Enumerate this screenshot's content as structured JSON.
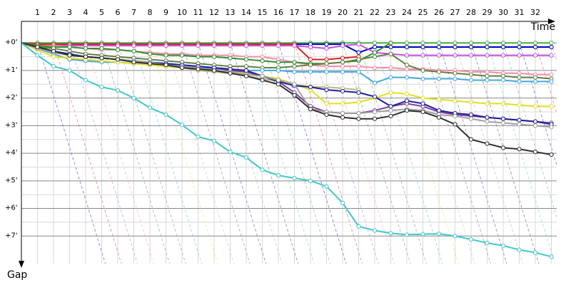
{
  "chart_data": {
    "type": "line",
    "x_label": "Time",
    "y_label": "Gap",
    "categories": [
      null,
      "1",
      "2",
      "3",
      "4",
      "5",
      "6",
      "7",
      "8",
      "9",
      "10",
      "11",
      "12",
      "13",
      "14",
      "15",
      "16",
      "17",
      "18",
      "19",
      "20",
      "21",
      "22",
      "23",
      "24",
      "25",
      "26",
      "27",
      "28",
      "29",
      "30",
      "31",
      "32",
      null
    ],
    "ylim": [
      -0.78,
      8.0
    ],
    "y_inverted": true,
    "yticks": [
      {
        "value": 0,
        "label": "+0'"
      },
      {
        "value": 1,
        "label": "+1'"
      },
      {
        "value": 2,
        "label": "+2'"
      },
      {
        "value": 3,
        "label": "+3'"
      },
      {
        "value": 4,
        "label": "+4'"
      },
      {
        "value": 5,
        "label": "+5'"
      },
      {
        "value": 6,
        "label": "+6'"
      },
      {
        "value": 7,
        "label": "+7'"
      }
    ],
    "grid": true,
    "minor_grid": true,
    "series": [
      {
        "color": "#40b040",
        "values": [
          0,
          0,
          0,
          0,
          0,
          0,
          0,
          0,
          0,
          0,
          0,
          0,
          0,
          0,
          0,
          0,
          0,
          0,
          0,
          0,
          0,
          0,
          0,
          0,
          0,
          0,
          0,
          0,
          0,
          0,
          0,
          0,
          0,
          0
        ]
      },
      {
        "color": "#0000c0",
        "values": [
          0,
          0.05,
          0.05,
          0.05,
          0.05,
          0.05,
          0.05,
          0.05,
          0.05,
          0.05,
          0.05,
          0.05,
          0.05,
          0.05,
          0.05,
          0.05,
          0.05,
          0.05,
          0.05,
          0.05,
          0.05,
          0.35,
          0.15,
          0.15,
          0.15,
          0.15,
          0.15,
          0.15,
          0.15,
          0.15,
          0.15,
          0.15,
          0.15,
          0.15
        ]
      },
      {
        "color": "#e02020",
        "values": [
          0,
          0.05,
          0.05,
          0.05,
          0.05,
          0.05,
          0.05,
          0.05,
          0.05,
          0.05,
          0.05,
          0.05,
          0.05,
          0.05,
          0.05,
          0.05,
          0.05,
          0.05,
          0.6,
          0.6,
          0.55,
          0.5,
          null,
          null,
          null,
          null,
          null,
          null,
          null,
          null,
          null,
          null,
          null,
          null
        ]
      },
      {
        "color": "#c050e0",
        "values": [
          0,
          0.1,
          0.1,
          0.1,
          0.1,
          0.1,
          0.1,
          0.1,
          0.1,
          0.1,
          0.1,
          0.1,
          0.1,
          0.1,
          0.1,
          0.1,
          0.1,
          0.1,
          0.15,
          0.2,
          0.1,
          0.05,
          0.35,
          0.4,
          0.45,
          0.45,
          0.45,
          0.45,
          0.45,
          0.45,
          0.45,
          0.45,
          0.45,
          0.45
        ]
      },
      {
        "color": "#ff88a8",
        "values": [
          0,
          0.1,
          0.1,
          0.15,
          0.2,
          0.25,
          0.25,
          0.3,
          0.35,
          0.4,
          0.4,
          0.45,
          0.45,
          0.45,
          0.5,
          0.5,
          0.6,
          0.7,
          0.8,
          0.85,
          0.85,
          0.85,
          0.9,
          0.9,
          0.95,
          0.95,
          1.0,
          1.0,
          1.05,
          1.05,
          1.1,
          1.1,
          1.15,
          1.15
        ]
      },
      {
        "color": "#309030",
        "values": [
          0,
          0.1,
          0.15,
          0.15,
          0.2,
          0.2,
          0.25,
          0.3,
          0.4,
          0.45,
          0.45,
          0.5,
          0.5,
          0.55,
          0.6,
          0.65,
          0.7,
          0.7,
          0.75,
          0.75,
          0.7,
          0.65,
          0.35,
          0,
          null,
          null,
          null,
          null,
          null,
          null,
          null,
          null,
          null,
          null
        ]
      },
      {
        "color": "#608040",
        "values": [
          0,
          0.15,
          0.2,
          0.3,
          0.4,
          0.45,
          0.5,
          0.55,
          0.6,
          0.65,
          0.7,
          0.75,
          0.8,
          0.85,
          0.85,
          0.9,
          0.9,
          0.85,
          0.8,
          0.75,
          0.7,
          0.6,
          0.5,
          0.4,
          0.8,
          1.0,
          1.05,
          1.1,
          1.15,
          1.2,
          1.2,
          1.25,
          1.25,
          1.3
        ]
      },
      {
        "color": "#40a8e8",
        "values": [
          0,
          0.2,
          0.4,
          0.6,
          0.65,
          0.7,
          0.7,
          0.75,
          0.8,
          0.85,
          0.9,
          0.9,
          0.95,
          0.95,
          1.0,
          1.0,
          1.0,
          1.05,
          1.05,
          1.05,
          1.05,
          1.05,
          1.45,
          1.25,
          1.25,
          1.3,
          1.3,
          1.3,
          1.35,
          1.35,
          1.35,
          1.4,
          1.4,
          1.4
        ]
      },
      {
        "color": "#e0e020",
        "values": [
          0,
          0.25,
          0.5,
          0.55,
          0.6,
          0.65,
          0.7,
          0.75,
          0.8,
          0.85,
          0.9,
          0.95,
          1.0,
          1.05,
          1.1,
          1.2,
          1.3,
          1.5,
          1.7,
          2.2,
          2.2,
          2.15,
          2.0,
          1.8,
          1.85,
          2.0,
          2.05,
          2.1,
          2.15,
          2.2,
          2.2,
          2.25,
          2.3,
          2.3
        ]
      },
      {
        "color": "#b8b880",
        "values": [
          0,
          0.2,
          0.3,
          0.4,
          0.5,
          0.55,
          0.6,
          0.7,
          0.75,
          0.8,
          0.9,
          1.0,
          1.05,
          1.1,
          1.2,
          1.3,
          1.4,
          1.5,
          1.6,
          1.6,
          1.65,
          1.7,
          null,
          null,
          null,
          null,
          null,
          null,
          null,
          null,
          null,
          null,
          null,
          null
        ]
      },
      {
        "color": "#8040a0",
        "values": [
          0,
          0.2,
          0.3,
          0.45,
          0.5,
          0.55,
          0.6,
          0.65,
          0.7,
          0.75,
          0.8,
          0.85,
          0.9,
          1.0,
          1.05,
          1.2,
          1.4,
          1.8,
          2.3,
          2.5,
          2.55,
          2.55,
          2.45,
          2.3,
          2.2,
          2.3,
          2.5,
          2.6,
          2.65,
          2.7,
          2.75,
          2.8,
          2.85,
          2.9
        ]
      },
      {
        "color": "#2020a0",
        "values": [
          0,
          0.2,
          0.3,
          0.4,
          0.5,
          0.55,
          0.6,
          0.65,
          0.7,
          0.75,
          0.8,
          0.85,
          0.9,
          0.95,
          1.0,
          1.2,
          1.4,
          1.55,
          1.6,
          1.7,
          1.75,
          1.8,
          1.95,
          2.3,
          2.1,
          2.2,
          2.45,
          2.55,
          2.6,
          2.7,
          2.75,
          2.8,
          2.85,
          2.95
        ]
      },
      {
        "color": "#a0a0a0",
        "values": [
          0,
          0.2,
          0.35,
          0.45,
          0.5,
          0.55,
          0.6,
          0.65,
          0.7,
          0.8,
          0.85,
          0.9,
          1.0,
          1.05,
          1.15,
          1.2,
          1.35,
          1.5,
          2.4,
          2.5,
          2.55,
          2.55,
          2.5,
          2.45,
          2.4,
          2.45,
          2.6,
          2.65,
          2.75,
          2.85,
          2.9,
          2.95,
          3.0,
          3.05
        ]
      },
      {
        "color": "#303030",
        "values": [
          0,
          0.15,
          0.3,
          0.45,
          0.5,
          0.55,
          0.6,
          0.7,
          0.75,
          0.8,
          0.9,
          0.95,
          1.0,
          1.1,
          1.2,
          1.35,
          1.5,
          1.9,
          2.4,
          2.6,
          2.7,
          2.75,
          2.75,
          2.65,
          2.45,
          2.5,
          2.7,
          2.95,
          3.5,
          3.65,
          3.8,
          3.85,
          3.95,
          4.05
        ]
      },
      {
        "color": "#40c8c8",
        "values": [
          0,
          0.45,
          0.85,
          1.0,
          1.35,
          1.6,
          1.72,
          2.0,
          2.35,
          2.6,
          2.97,
          3.4,
          3.55,
          3.95,
          4.15,
          4.6,
          4.8,
          4.9,
          5.0,
          5.2,
          5.8,
          6.65,
          6.8,
          6.9,
          6.95,
          6.93,
          6.92,
          7.0,
          7.12,
          7.25,
          7.35,
          7.5,
          7.6,
          7.75
        ]
      }
    ]
  }
}
